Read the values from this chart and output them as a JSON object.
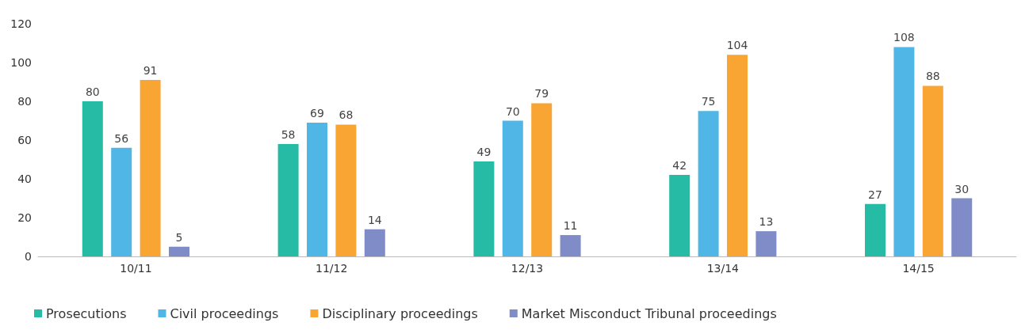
{
  "chart_data": {
    "type": "bar",
    "categories": [
      "10/11",
      "11/12",
      "12/13",
      "13/14",
      "14/15"
    ],
    "series": [
      {
        "name": "Prosecutions",
        "color": "#26bba4",
        "values": [
          80,
          58,
          49,
          42,
          27
        ]
      },
      {
        "name": "Civil proceedings",
        "color": "#4fb6e6",
        "values": [
          56,
          69,
          70,
          75,
          108
        ]
      },
      {
        "name": "Disciplinary proceedings",
        "color": "#f9a533",
        "values": [
          91,
          68,
          79,
          104,
          88
        ]
      },
      {
        "name": "Market Misconduct Tribunal proceedings",
        "color": "#7f8cc7",
        "values": [
          5,
          14,
          11,
          13,
          30
        ]
      }
    ],
    "ylim": [
      0,
      120
    ],
    "yticks": [
      0,
      20,
      40,
      60,
      80,
      100,
      120
    ],
    "grid": false,
    "legend": "bottom left",
    "data_labels": true
  }
}
